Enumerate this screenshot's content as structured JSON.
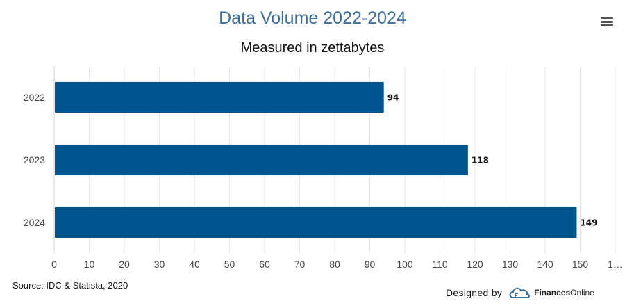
{
  "title": "Data Volume 2022-2024",
  "subtitle": "Measured in zettabytes",
  "menu": {
    "icon": "hamburger-menu-icon"
  },
  "source": "Source: IDC & Statista, 2020",
  "credit": {
    "designed_by": "Designed by",
    "brand_bold": "Finances",
    "brand_light": "Online",
    "logo_icon": "finances-online-logo-icon"
  },
  "colors": {
    "bar": "#00558f",
    "title": "#3b6e9e",
    "grid": "#e6e6e6",
    "axis": "#ccd6eb"
  },
  "chart_data": {
    "type": "bar",
    "orientation": "horizontal",
    "title": "Data Volume 2022-2024",
    "subtitle": "Measured in zettabytes",
    "categories": [
      "2022",
      "2023",
      "2024"
    ],
    "values": [
      94,
      118,
      149
    ],
    "data_labels": [
      "94",
      "118",
      "149"
    ],
    "x_ticks": [
      "0",
      "10",
      "20",
      "30",
      "40",
      "50",
      "60",
      "70",
      "80",
      "90",
      "100",
      "110",
      "120",
      "130",
      "140",
      "150",
      "1…"
    ],
    "xlim": [
      0,
      160
    ],
    "grid": true,
    "legend": "none"
  }
}
